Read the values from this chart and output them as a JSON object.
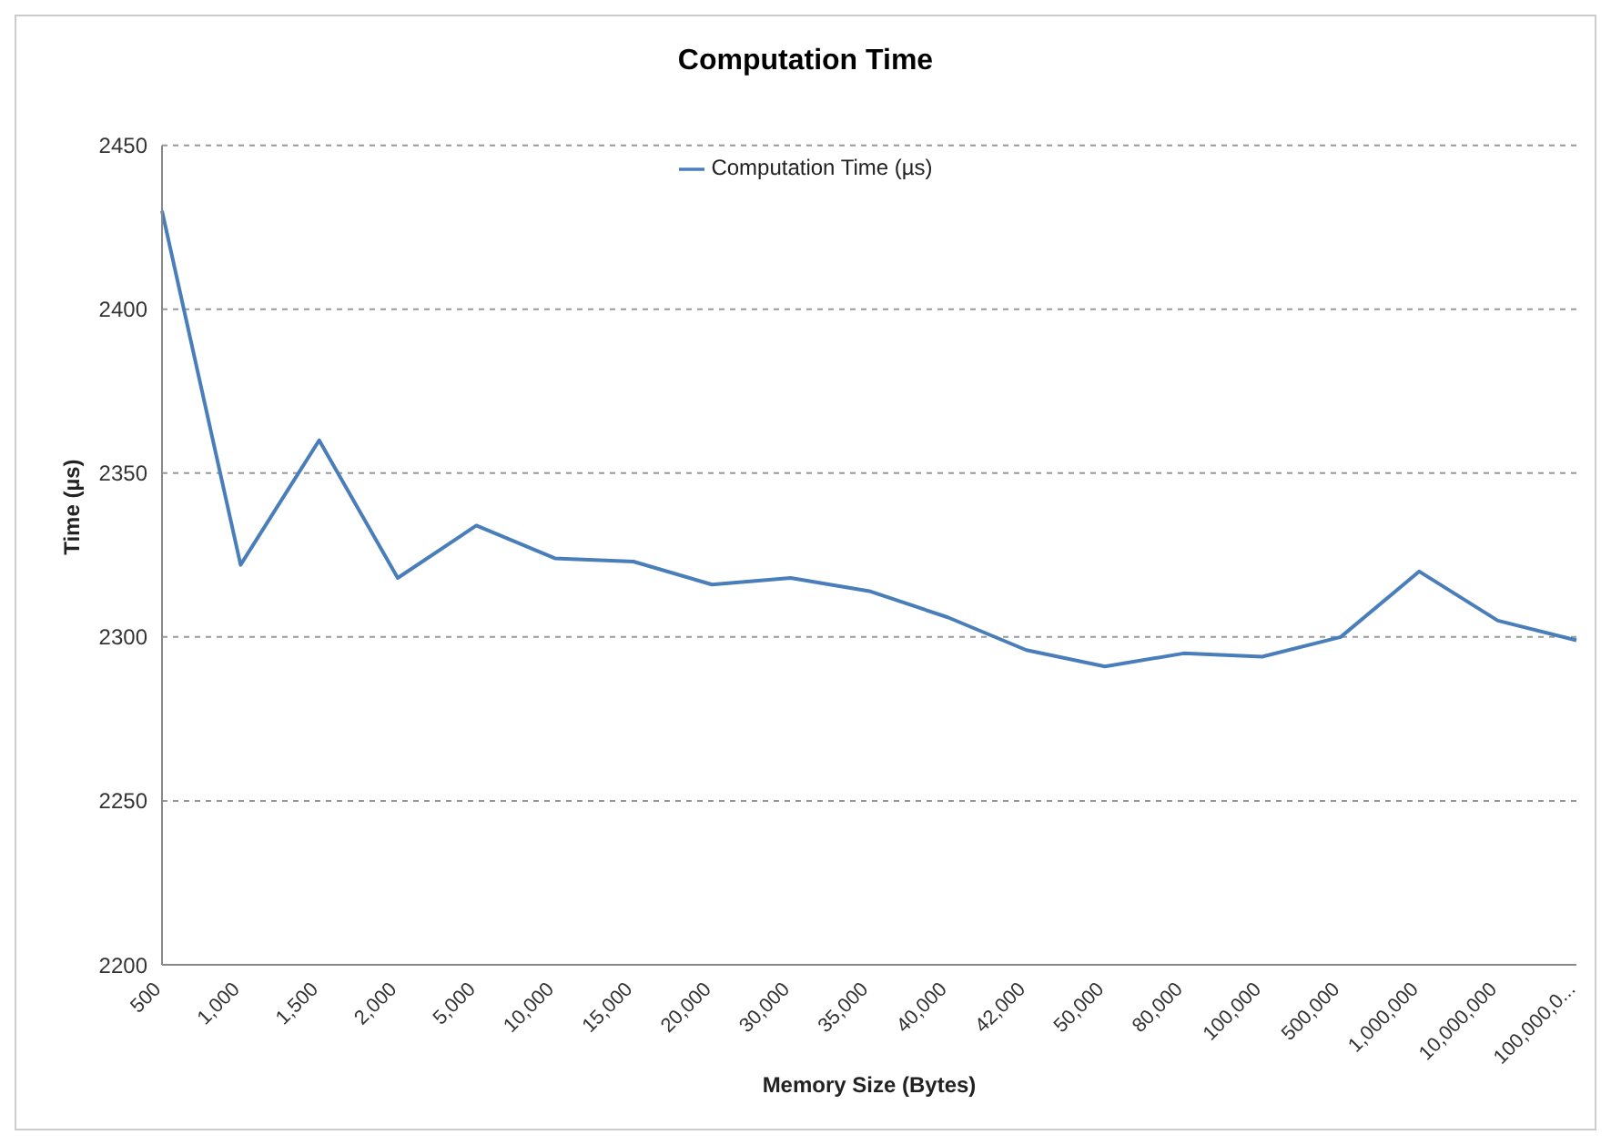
{
  "chart_data": {
    "type": "line",
    "title": "Computation Time",
    "xlabel": "Memory Size (Bytes)",
    "ylabel": "Time (µs)",
    "categories": [
      "500",
      "1,000",
      "1,500",
      "2,000",
      "5,000",
      "10,000",
      "15,000",
      "20,000",
      "30,000",
      "35,000",
      "40,000",
      "42,000",
      "50,000",
      "80,000",
      "100,000",
      "500,000",
      "1,000,000",
      "10,000,000",
      "100,000,0..."
    ],
    "series": [
      {
        "name": "Computation Time (µs)",
        "color": "#4a7ebb",
        "values": [
          2430,
          2322,
          2360,
          2318,
          2334,
          2324,
          2323,
          2316,
          2318,
          2314,
          2306,
          2296,
          2291,
          2295,
          2294,
          2300,
          2320,
          2305,
          2299
        ]
      }
    ],
    "ylim": [
      2200,
      2450
    ],
    "yticks": [
      2200,
      2250,
      2300,
      2350,
      2400,
      2450
    ],
    "grid": "y",
    "legend": "top",
    "marker": "none",
    "line_style": "solid"
  }
}
